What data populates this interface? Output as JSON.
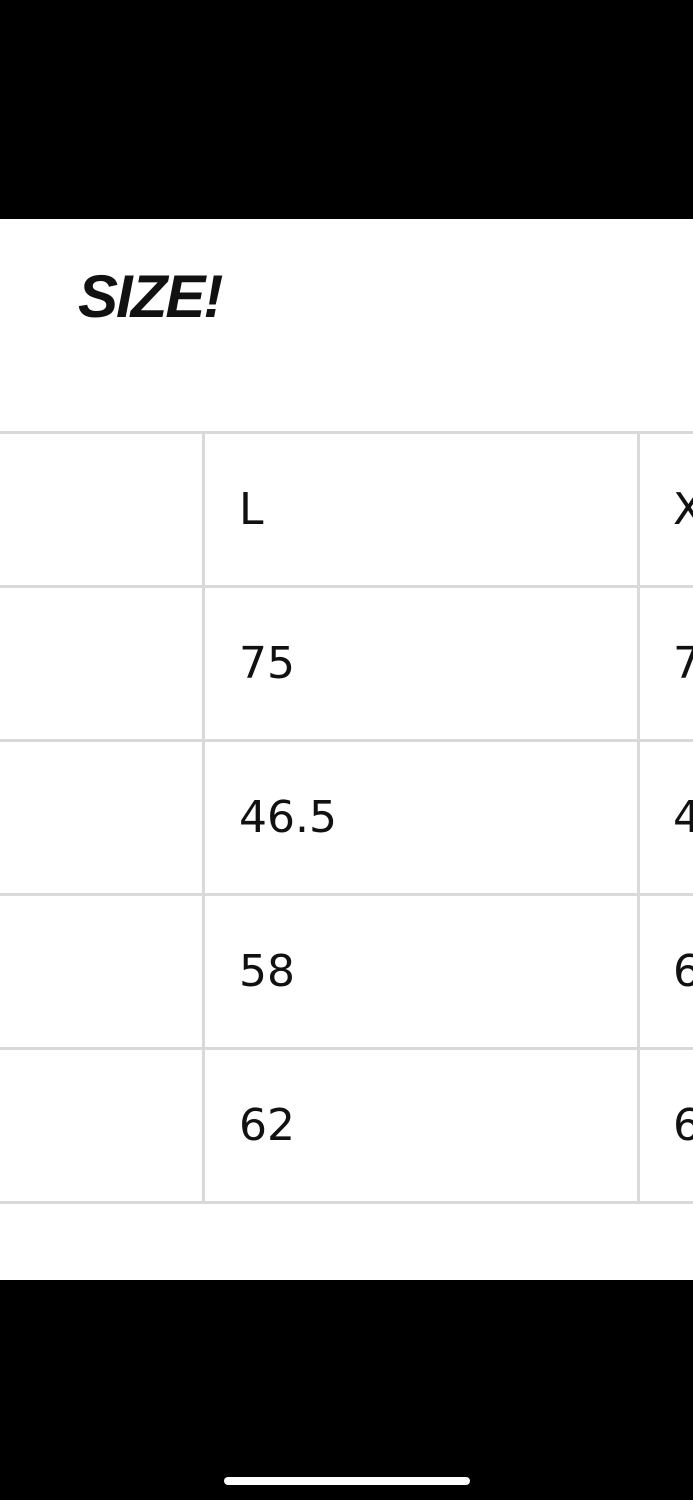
{
  "title": "SIZE!",
  "table": {
    "rows": [
      {
        "label": "",
        "col1": "L",
        "col2": "X"
      },
      {
        "label": "",
        "col1": "75",
        "col2": "7"
      },
      {
        "label": "",
        "col1": "46.5",
        "col2": "4"
      },
      {
        "label": "",
        "col1": "58",
        "col2": "6"
      },
      {
        "label": "",
        "col1": "62",
        "col2": "6"
      }
    ]
  }
}
